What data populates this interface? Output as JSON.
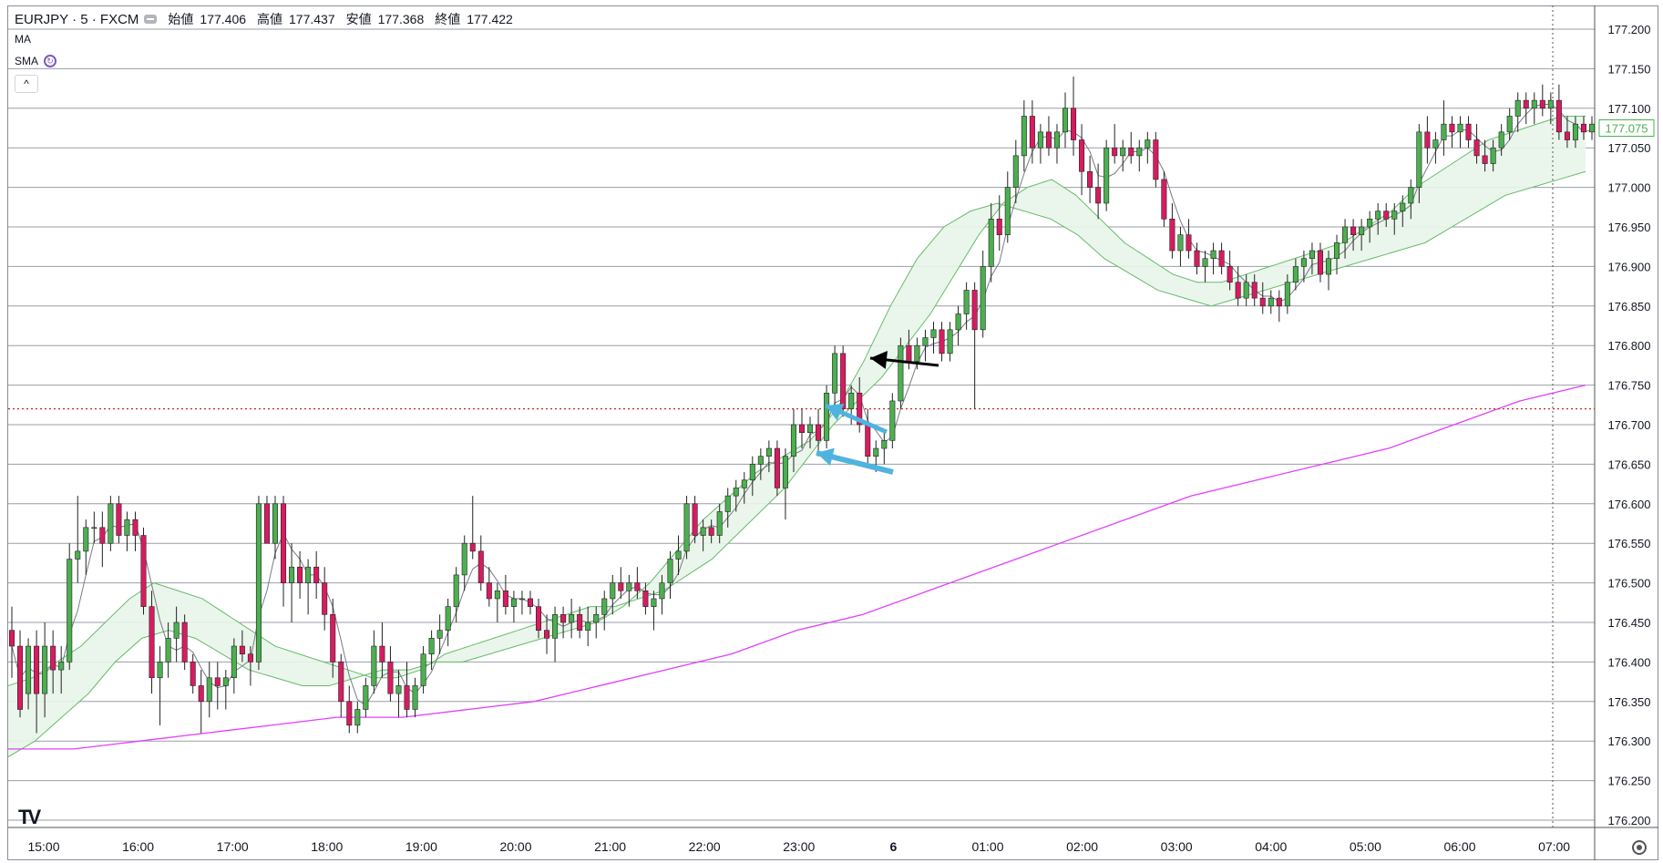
{
  "header": {
    "symbol": "EURJPY · 5 · FXCM",
    "ohlc": [
      {
        "label": "始値",
        "value": "177.406"
      },
      {
        "label": "高値",
        "value": "177.437"
      },
      {
        "label": "安値",
        "value": "177.368"
      },
      {
        "label": "終値",
        "value": "177.422"
      }
    ],
    "indicator_ma": "MA",
    "indicator_sma": "SMA",
    "collapse_label": "^",
    "logo_text": "TV"
  },
  "colors": {
    "up": "#4caf50",
    "down": "#d81b60",
    "ma_fast": "#787b86",
    "ma_band": "#66bb6a",
    "band_fill": "#e8f5e9",
    "ma_long": "#e040fb",
    "price_label": "#4caf50",
    "level_line": "#c62828",
    "arrow_blue": "#4fb3e0",
    "arrow_black": "#000000"
  },
  "chart_data": {
    "type": "candlestick",
    "title": "EURJPY · 5 · FXCM",
    "ylim": [
      176.2,
      177.225
    ],
    "y_ticks": [
      "177.200",
      "177.150",
      "177.100",
      "177.050",
      "177.000",
      "176.950",
      "176.900",
      "176.850",
      "176.800",
      "176.750",
      "176.700",
      "176.650",
      "176.600",
      "176.550",
      "176.500",
      "176.450",
      "176.400",
      "176.350",
      "176.300",
      "176.250",
      "176.200"
    ],
    "x_ticks": [
      "15:00",
      "16:00",
      "17:00",
      "18:00",
      "19:00",
      "20:00",
      "21:00",
      "22:00",
      "23:00",
      "6",
      "01:00",
      "02:00",
      "03:00",
      "04:00",
      "05:00",
      "06:00",
      "07:00"
    ],
    "current_price": "177.075",
    "horizontal_level": 176.72,
    "grid": true,
    "ohlc_series": [
      [
        176.44,
        176.47,
        176.38,
        176.42
      ],
      [
        176.42,
        176.44,
        176.33,
        176.34
      ],
      [
        176.36,
        176.43,
        176.34,
        176.42
      ],
      [
        176.42,
        176.44,
        176.31,
        176.36
      ],
      [
        176.36,
        176.45,
        176.33,
        176.42
      ],
      [
        176.42,
        176.44,
        176.36,
        176.39
      ],
      [
        176.39,
        176.42,
        176.36,
        176.4
      ],
      [
        176.4,
        176.55,
        176.39,
        176.53
      ],
      [
        176.53,
        176.61,
        176.5,
        176.54
      ],
      [
        176.54,
        176.58,
        176.51,
        176.57
      ],
      [
        176.57,
        176.59,
        176.55,
        176.57
      ],
      [
        176.57,
        176.59,
        176.52,
        176.55
      ],
      [
        176.55,
        176.61,
        176.54,
        176.6
      ],
      [
        176.6,
        176.61,
        176.55,
        176.56
      ],
      [
        176.56,
        176.59,
        176.54,
        176.58
      ],
      [
        176.58,
        176.59,
        176.54,
        176.56
      ],
      [
        176.56,
        176.57,
        176.46,
        176.47
      ],
      [
        176.47,
        176.49,
        176.36,
        176.38
      ],
      [
        176.38,
        176.42,
        176.32,
        176.4
      ],
      [
        176.4,
        176.45,
        176.38,
        176.43
      ],
      [
        176.43,
        176.47,
        176.4,
        176.45
      ],
      [
        176.45,
        176.46,
        176.39,
        176.4
      ],
      [
        176.4,
        176.41,
        176.36,
        176.37
      ],
      [
        176.37,
        176.39,
        176.31,
        176.35
      ],
      [
        176.35,
        176.4,
        176.33,
        176.38
      ],
      [
        176.38,
        176.4,
        176.34,
        176.37
      ],
      [
        176.37,
        176.39,
        176.34,
        176.38
      ],
      [
        176.38,
        176.43,
        176.36,
        176.42
      ],
      [
        176.42,
        176.44,
        176.4,
        176.41
      ],
      [
        176.41,
        176.42,
        176.37,
        176.4
      ],
      [
        176.4,
        176.61,
        176.39,
        176.6
      ],
      [
        176.6,
        176.61,
        176.55,
        176.55
      ],
      [
        176.55,
        176.61,
        176.53,
        176.6
      ],
      [
        176.6,
        176.61,
        176.47,
        176.5
      ],
      [
        176.5,
        176.55,
        176.45,
        176.52
      ],
      [
        176.52,
        176.54,
        176.48,
        176.5
      ],
      [
        176.5,
        176.53,
        176.46,
        176.52
      ],
      [
        176.52,
        176.54,
        176.48,
        176.5
      ],
      [
        176.5,
        176.52,
        176.44,
        176.46
      ],
      [
        176.46,
        176.48,
        176.38,
        176.4
      ],
      [
        176.4,
        176.41,
        176.33,
        176.35
      ],
      [
        176.35,
        176.37,
        176.31,
        176.32
      ],
      [
        176.32,
        176.35,
        176.31,
        176.34
      ],
      [
        176.34,
        176.38,
        176.33,
        176.37
      ],
      [
        176.37,
        176.44,
        176.36,
        176.42
      ],
      [
        176.42,
        176.45,
        176.38,
        176.4
      ],
      [
        176.4,
        176.42,
        176.35,
        176.36
      ],
      [
        176.36,
        176.39,
        176.33,
        176.37
      ],
      [
        176.37,
        176.4,
        176.33,
        176.34
      ],
      [
        176.34,
        176.38,
        176.33,
        176.37
      ],
      [
        176.37,
        176.42,
        176.36,
        176.41
      ],
      [
        176.41,
        176.44,
        176.39,
        176.43
      ],
      [
        176.43,
        176.46,
        176.41,
        176.44
      ],
      [
        176.44,
        176.48,
        176.42,
        176.47
      ],
      [
        176.47,
        176.52,
        176.45,
        176.51
      ],
      [
        176.51,
        176.56,
        176.49,
        176.55
      ],
      [
        176.55,
        176.61,
        176.53,
        176.54
      ],
      [
        176.54,
        176.56,
        176.49,
        176.5
      ],
      [
        176.5,
        176.52,
        176.47,
        176.48
      ],
      [
        176.48,
        176.5,
        176.45,
        176.49
      ],
      [
        176.49,
        176.51,
        176.46,
        176.47
      ],
      [
        176.47,
        176.49,
        176.45,
        176.48
      ],
      [
        176.48,
        176.49,
        176.46,
        176.48
      ],
      [
        176.48,
        176.49,
        176.46,
        176.47
      ],
      [
        176.47,
        176.48,
        176.43,
        176.44
      ],
      [
        176.44,
        176.46,
        176.41,
        176.43
      ],
      [
        176.43,
        176.47,
        176.4,
        176.46
      ],
      [
        176.46,
        176.47,
        176.43,
        176.45
      ],
      [
        176.45,
        176.48,
        176.43,
        176.46
      ],
      [
        176.46,
        176.47,
        176.43,
        176.44
      ],
      [
        176.44,
        176.47,
        176.42,
        176.45
      ],
      [
        176.45,
        176.47,
        176.43,
        176.46
      ],
      [
        176.46,
        176.49,
        176.44,
        176.48
      ],
      [
        176.48,
        176.51,
        176.46,
        176.5
      ],
      [
        176.5,
        176.52,
        176.48,
        176.49
      ],
      [
        176.49,
        176.51,
        176.47,
        176.5
      ],
      [
        176.5,
        176.52,
        176.48,
        176.49
      ],
      [
        176.49,
        176.5,
        176.46,
        176.47
      ],
      [
        176.47,
        176.49,
        176.44,
        176.48
      ],
      [
        176.48,
        176.51,
        176.46,
        176.5
      ],
      [
        176.5,
        176.54,
        176.48,
        176.53
      ],
      [
        176.53,
        176.56,
        176.51,
        176.54
      ],
      [
        176.54,
        176.61,
        176.53,
        176.6
      ],
      [
        176.6,
        176.61,
        176.55,
        176.56
      ],
      [
        176.56,
        176.58,
        176.54,
        176.57
      ],
      [
        176.57,
        176.58,
        176.55,
        176.56
      ],
      [
        176.56,
        176.6,
        176.55,
        176.59
      ],
      [
        176.59,
        176.62,
        176.57,
        176.61
      ],
      [
        176.61,
        176.63,
        176.59,
        176.62
      ],
      [
        176.62,
        176.64,
        176.6,
        176.63
      ],
      [
        176.63,
        176.66,
        176.61,
        176.65
      ],
      [
        176.65,
        176.67,
        176.63,
        176.66
      ],
      [
        176.66,
        176.68,
        176.64,
        176.67
      ],
      [
        176.67,
        176.68,
        176.61,
        176.62
      ],
      [
        176.62,
        176.67,
        176.58,
        176.66
      ],
      [
        176.66,
        176.72,
        176.64,
        176.7
      ],
      [
        176.7,
        176.72,
        176.67,
        176.69
      ],
      [
        176.69,
        176.71,
        176.67,
        176.7
      ],
      [
        176.7,
        176.72,
        176.66,
        176.68
      ],
      [
        176.68,
        176.75,
        176.67,
        176.74
      ],
      [
        176.74,
        176.8,
        176.72,
        176.79
      ],
      [
        176.79,
        176.8,
        176.71,
        176.72
      ],
      [
        176.72,
        176.75,
        176.7,
        176.74
      ],
      [
        176.74,
        176.76,
        176.69,
        176.7
      ],
      [
        176.7,
        176.72,
        176.65,
        176.66
      ],
      [
        176.66,
        176.68,
        176.64,
        176.67
      ],
      [
        176.67,
        176.69,
        176.65,
        176.68
      ],
      [
        176.68,
        176.74,
        176.67,
        176.73
      ],
      [
        176.73,
        176.81,
        176.72,
        176.8
      ],
      [
        176.8,
        176.82,
        176.77,
        176.78
      ],
      [
        176.78,
        176.81,
        176.77,
        176.8
      ],
      [
        176.8,
        176.82,
        176.78,
        176.81
      ],
      [
        176.81,
        176.83,
        176.79,
        176.82
      ],
      [
        176.82,
        176.83,
        176.78,
        176.79
      ],
      [
        176.79,
        176.83,
        176.78,
        176.82
      ],
      [
        176.82,
        176.85,
        176.8,
        176.84
      ],
      [
        176.84,
        176.88,
        176.82,
        176.87
      ],
      [
        176.87,
        176.88,
        176.72,
        176.82
      ],
      [
        176.82,
        176.92,
        176.81,
        176.9
      ],
      [
        176.9,
        176.98,
        176.88,
        176.96
      ],
      [
        176.96,
        176.99,
        176.92,
        176.94
      ],
      [
        176.94,
        177.02,
        176.93,
        177.0
      ],
      [
        177.0,
        177.06,
        176.98,
        177.04
      ],
      [
        177.04,
        177.11,
        177.02,
        177.09
      ],
      [
        177.09,
        177.11,
        177.03,
        177.05
      ],
      [
        177.05,
        177.08,
        177.03,
        177.07
      ],
      [
        177.07,
        177.09,
        177.04,
        177.05
      ],
      [
        177.05,
        177.08,
        177.03,
        177.07
      ],
      [
        177.07,
        177.12,
        177.05,
        177.1
      ],
      [
        177.1,
        177.14,
        177.04,
        177.06
      ],
      [
        177.06,
        177.08,
        176.99,
        177.02
      ],
      [
        177.02,
        177.04,
        176.98,
        177.0
      ],
      [
        177.0,
        177.03,
        176.96,
        176.98
      ],
      [
        176.98,
        177.06,
        176.97,
        177.05
      ],
      [
        177.05,
        177.08,
        177.03,
        177.04
      ],
      [
        177.04,
        177.06,
        177.02,
        177.05
      ],
      [
        177.05,
        177.07,
        177.03,
        177.04
      ],
      [
        177.04,
        177.06,
        177.02,
        177.05
      ],
      [
        177.05,
        177.07,
        177.03,
        177.06
      ],
      [
        177.06,
        177.07,
        177.0,
        177.01
      ],
      [
        177.01,
        177.02,
        176.95,
        176.96
      ],
      [
        176.96,
        176.98,
        176.91,
        176.92
      ],
      [
        176.92,
        176.95,
        176.9,
        176.94
      ],
      [
        176.94,
        176.96,
        176.91,
        176.92
      ],
      [
        176.92,
        176.93,
        176.89,
        176.9
      ],
      [
        176.9,
        176.92,
        176.88,
        176.91
      ],
      [
        176.91,
        176.93,
        176.89,
        176.92
      ],
      [
        176.92,
        176.93,
        176.89,
        176.9
      ],
      [
        176.9,
        176.92,
        176.87,
        176.88
      ],
      [
        176.88,
        176.9,
        176.85,
        176.86
      ],
      [
        176.86,
        176.89,
        176.85,
        176.88
      ],
      [
        176.88,
        176.89,
        176.85,
        176.86
      ],
      [
        176.86,
        176.88,
        176.84,
        176.85
      ],
      [
        176.85,
        176.87,
        176.84,
        176.86
      ],
      [
        176.86,
        176.87,
        176.83,
        176.85
      ],
      [
        176.85,
        176.89,
        176.84,
        176.88
      ],
      [
        176.88,
        176.91,
        176.87,
        176.9
      ],
      [
        176.9,
        176.92,
        176.88,
        176.91
      ],
      [
        176.91,
        176.93,
        176.89,
        176.92
      ],
      [
        176.92,
        176.93,
        176.88,
        176.89
      ],
      [
        176.89,
        176.92,
        176.87,
        176.91
      ],
      [
        176.91,
        176.94,
        176.89,
        176.93
      ],
      [
        176.93,
        176.96,
        176.91,
        176.95
      ],
      [
        176.95,
        176.96,
        176.92,
        176.94
      ],
      [
        176.94,
        176.96,
        176.92,
        176.95
      ],
      [
        176.95,
        176.97,
        176.93,
        176.96
      ],
      [
        176.96,
        176.98,
        176.94,
        176.97
      ],
      [
        176.97,
        176.98,
        176.95,
        176.96
      ],
      [
        176.96,
        176.98,
        176.94,
        176.97
      ],
      [
        176.97,
        176.99,
        176.95,
        176.98
      ],
      [
        176.98,
        177.01,
        176.96,
        177.0
      ],
      [
        177.0,
        177.08,
        176.98,
        177.07
      ],
      [
        177.07,
        177.09,
        177.03,
        177.05
      ],
      [
        177.05,
        177.07,
        177.03,
        177.06
      ],
      [
        177.06,
        177.11,
        177.04,
        177.08
      ],
      [
        177.08,
        177.09,
        177.05,
        177.07
      ],
      [
        177.07,
        177.09,
        177.05,
        177.08
      ],
      [
        177.08,
        177.09,
        177.05,
        177.06
      ],
      [
        177.06,
        177.08,
        177.03,
        177.04
      ],
      [
        177.04,
        177.06,
        177.02,
        177.03
      ],
      [
        177.03,
        177.06,
        177.02,
        177.05
      ],
      [
        177.05,
        177.08,
        177.04,
        177.07
      ],
      [
        177.07,
        177.1,
        177.06,
        177.09
      ],
      [
        177.09,
        177.12,
        177.07,
        177.11
      ],
      [
        177.11,
        177.12,
        177.08,
        177.1
      ],
      [
        177.1,
        177.12,
        177.08,
        177.11
      ],
      [
        177.11,
        177.13,
        177.09,
        177.1
      ],
      [
        177.1,
        177.12,
        177.08,
        177.11
      ],
      [
        177.11,
        177.13,
        177.06,
        177.07
      ],
      [
        177.07,
        177.09,
        177.05,
        177.06
      ],
      [
        177.06,
        177.09,
        177.05,
        177.08
      ],
      [
        177.08,
        177.09,
        177.06,
        177.07
      ],
      [
        177.07,
        177.09,
        177.06,
        177.08
      ]
    ],
    "series": [
      {
        "values": [
          176.37,
          176.38,
          176.4,
          176.42,
          176.45,
          176.48,
          176.5,
          176.49,
          176.48,
          176.46,
          176.44,
          176.42,
          176.41,
          176.4,
          176.39,
          176.38,
          176.38,
          176.39,
          176.41,
          176.42,
          176.43,
          176.44,
          176.45,
          176.46,
          176.47,
          176.47,
          176.48,
          176.49,
          176.51,
          176.53,
          176.56,
          176.59,
          176.62,
          176.66,
          176.7,
          176.73,
          176.76,
          176.8,
          176.84,
          176.89,
          176.94,
          176.98,
          177.0,
          177.01,
          176.99,
          176.96,
          176.93,
          176.91,
          176.89,
          176.88,
          176.88,
          176.89,
          176.9,
          176.91,
          176.92,
          176.93,
          176.95,
          176.97,
          177.0,
          177.02,
          177.04,
          177.06,
          177.07,
          177.08,
          177.09,
          177.09
        ]
      },
      {
        "values": [
          176.28,
          176.3,
          176.33,
          176.36,
          176.4,
          176.43,
          176.44,
          176.43,
          176.41,
          176.39,
          176.38,
          176.37,
          176.37,
          176.38,
          176.39,
          176.39,
          176.4,
          176.4,
          176.41,
          176.42,
          176.43,
          176.44,
          176.45,
          176.47,
          176.5,
          176.54,
          176.58,
          176.61,
          176.64,
          176.66,
          176.68,
          176.72,
          176.78,
          176.85,
          176.91,
          176.95,
          176.97,
          176.98,
          176.97,
          176.96,
          176.94,
          176.91,
          176.89,
          176.87,
          176.86,
          176.85,
          176.86,
          176.87,
          176.88,
          176.89,
          176.9,
          176.91,
          176.92,
          176.93,
          176.95,
          176.97,
          176.99,
          177.0,
          177.01,
          177.02
        ]
      },
      {
        "values": [
          176.29,
          176.29,
          176.3,
          176.31,
          176.32,
          176.33,
          176.33,
          176.34,
          176.35,
          176.37,
          176.39,
          176.41,
          176.44,
          176.46,
          176.49,
          176.52,
          176.55,
          176.58,
          176.61,
          176.63,
          176.65,
          176.67,
          176.7,
          176.73,
          176.75
        ]
      }
    ]
  }
}
